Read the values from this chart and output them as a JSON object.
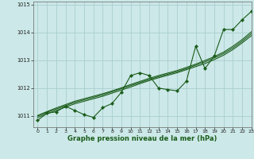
{
  "title": "",
  "xlabel": "Graphe pression niveau de la mer (hPa)",
  "ylabel": "",
  "bg_color": "#cce8e8",
  "grid_color": "#aacece",
  "line_color": "#1a5c1a",
  "xlim": [
    -0.5,
    23
  ],
  "ylim": [
    1010.6,
    1015.1
  ],
  "yticks": [
    1011,
    1012,
    1013,
    1014,
    1015
  ],
  "xticks": [
    0,
    1,
    2,
    3,
    4,
    5,
    6,
    7,
    8,
    9,
    10,
    11,
    12,
    13,
    14,
    15,
    16,
    17,
    18,
    19,
    20,
    21,
    22,
    23
  ],
  "hours": [
    0,
    1,
    2,
    3,
    4,
    5,
    6,
    7,
    8,
    9,
    10,
    11,
    12,
    13,
    14,
    15,
    16,
    17,
    18,
    19,
    20,
    21,
    22,
    23
  ],
  "pressure": [
    1010.85,
    1011.1,
    1011.15,
    1011.35,
    1011.2,
    1011.05,
    1010.95,
    1011.3,
    1011.45,
    1011.85,
    1012.45,
    1012.55,
    1012.45,
    1012.0,
    1011.95,
    1011.9,
    1012.25,
    1013.5,
    1012.7,
    1013.15,
    1014.1,
    1014.1,
    1014.45,
    1014.75
  ],
  "trend1": [
    1010.95,
    1011.08,
    1011.2,
    1011.32,
    1011.44,
    1011.53,
    1011.62,
    1011.71,
    1011.82,
    1011.93,
    1012.04,
    1012.16,
    1012.27,
    1012.37,
    1012.46,
    1012.55,
    1012.66,
    1012.77,
    1012.88,
    1013.02,
    1013.18,
    1013.38,
    1013.62,
    1013.88
  ],
  "trend2": [
    1011.0,
    1011.13,
    1011.25,
    1011.37,
    1011.49,
    1011.58,
    1011.67,
    1011.76,
    1011.87,
    1011.98,
    1012.09,
    1012.2,
    1012.31,
    1012.41,
    1012.5,
    1012.59,
    1012.7,
    1012.82,
    1012.94,
    1013.08,
    1013.24,
    1013.44,
    1013.68,
    1013.95
  ],
  "trend3": [
    1011.02,
    1011.16,
    1011.29,
    1011.41,
    1011.53,
    1011.62,
    1011.71,
    1011.8,
    1011.9,
    1012.01,
    1012.13,
    1012.24,
    1012.35,
    1012.45,
    1012.54,
    1012.63,
    1012.74,
    1012.86,
    1012.99,
    1013.13,
    1013.29,
    1013.5,
    1013.74,
    1014.02
  ]
}
